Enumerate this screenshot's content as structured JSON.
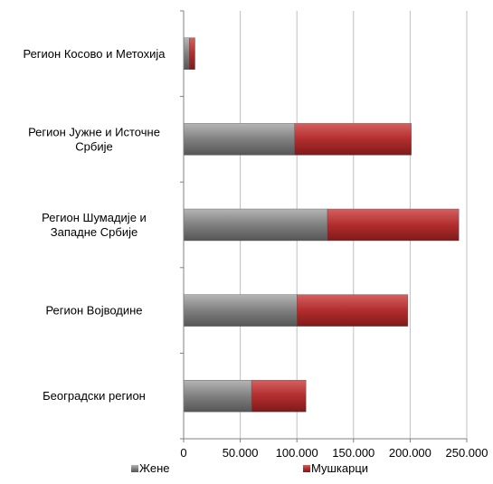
{
  "chart_data": {
    "type": "bar",
    "orientation": "horizontal",
    "stacked": true,
    "categories": [
      [
        "Регион Косово и Метохија"
      ],
      [
        "Регион Јужне и Источне",
        "Србије"
      ],
      [
        "Регион Шумадије и",
        "Западне Србије"
      ],
      [
        "Регион Војводине"
      ],
      [
        "Београдски регион"
      ]
    ],
    "series": [
      {
        "name": "Жене",
        "color": "#7f7f7f",
        "values": [
          5000,
          98000,
          127000,
          100000,
          60000
        ]
      },
      {
        "name": "Мушкарци",
        "color": "#b32d2d",
        "values": [
          5000,
          103000,
          116000,
          98000,
          48000
        ]
      }
    ],
    "xlim": [
      0,
      250000
    ],
    "xticks": [
      0,
      50000,
      100000,
      150000,
      200000,
      250000
    ],
    "xtick_labels": [
      "0",
      "50.000",
      "100.000",
      "150.000",
      "200.000",
      "250.000"
    ],
    "grid": "vertical",
    "legend_position": "bottom",
    "title": "",
    "xlabel": "",
    "ylabel": ""
  }
}
